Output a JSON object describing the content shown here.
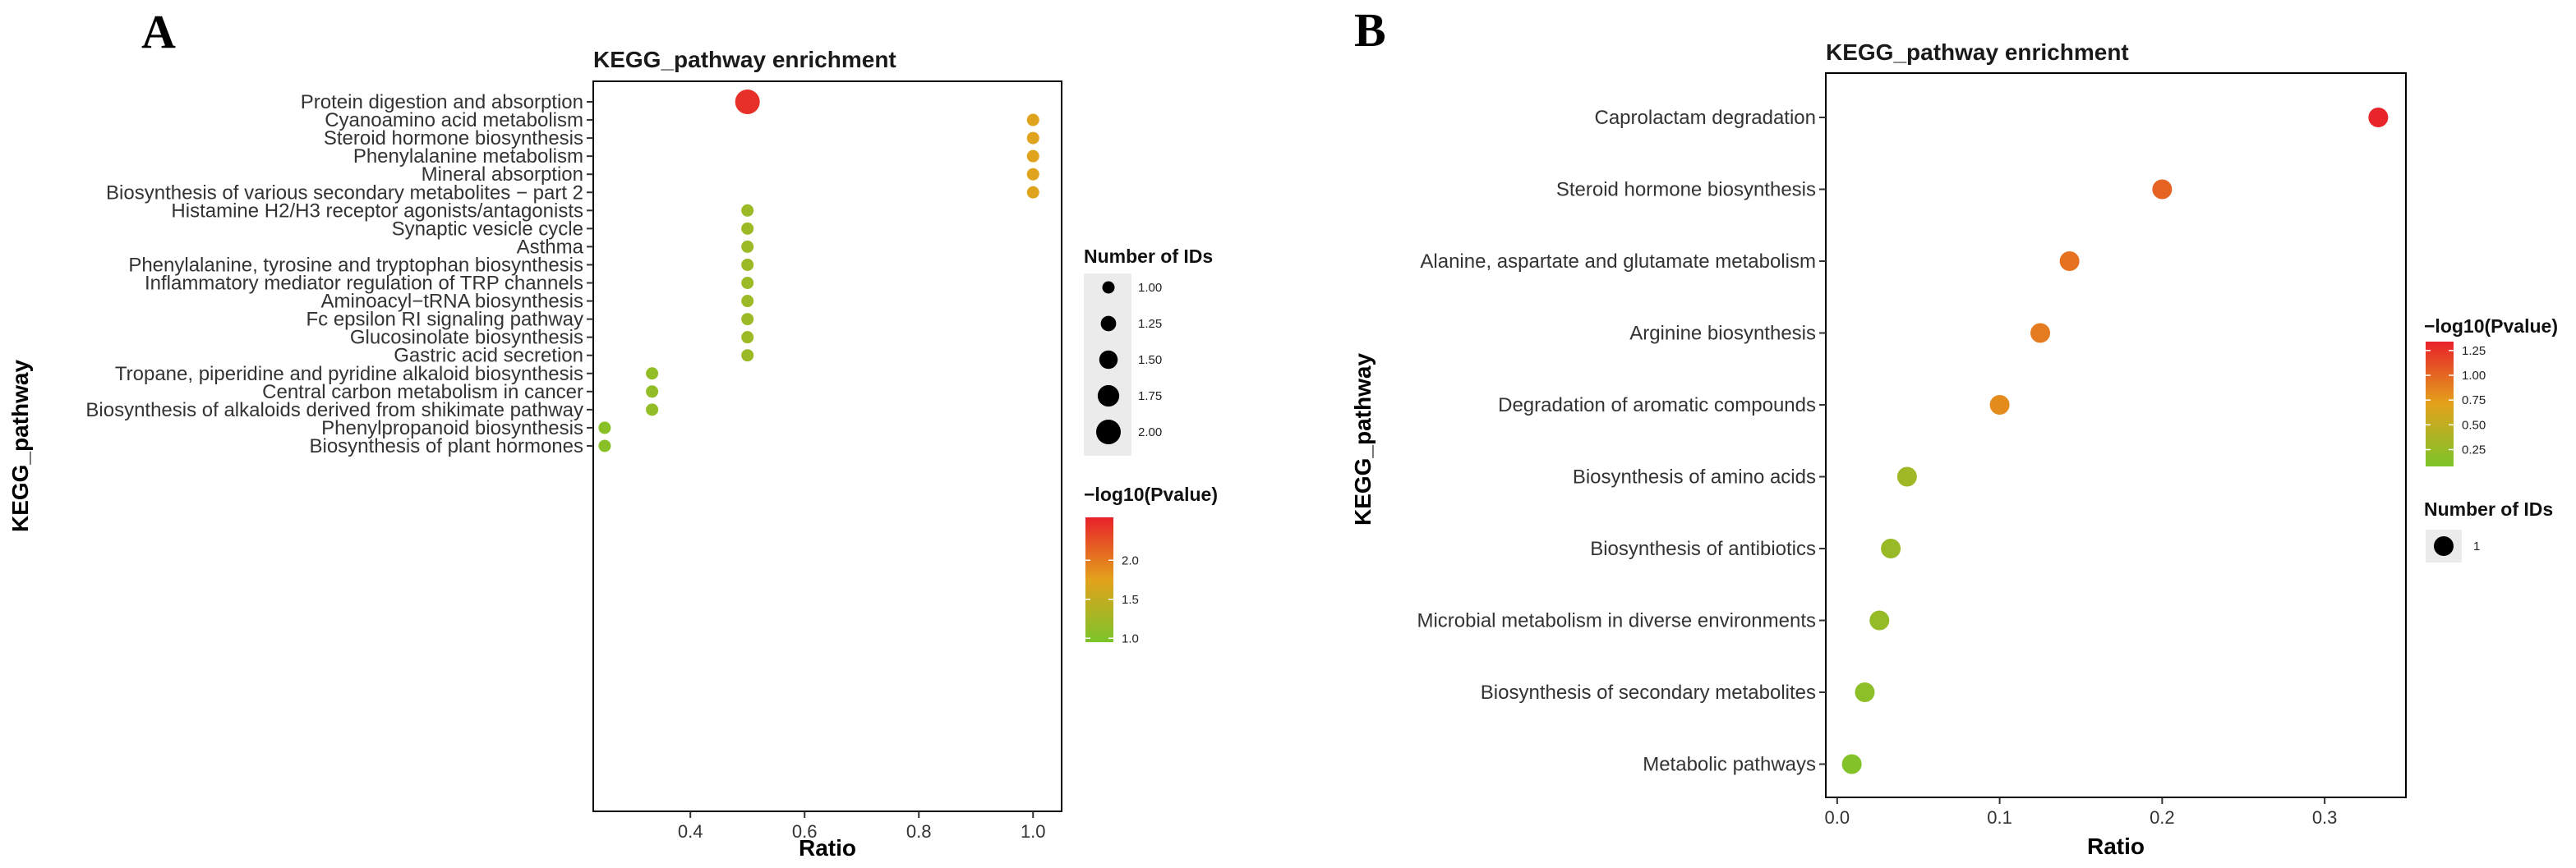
{
  "chart_data": [
    {
      "type": "scatter",
      "panel_label": "A",
      "title": "KEGG_pathway enrichment",
      "xlabel": "Ratio",
      "ylabel": "KEGG_pathway",
      "xlim": [
        0.23,
        1.05
      ],
      "xticks": [
        0.4,
        0.6,
        0.8,
        1.0
      ],
      "xtick_labels": [
        "0.4",
        "0.6",
        "0.8",
        "1.0"
      ],
      "grid": false,
      "categories": [
        "Protein digestion and absorption",
        "Cyanoamino acid metabolism",
        "Steroid hormone biosynthesis",
        "Phenylalanine metabolism",
        "Mineral absorption",
        "Biosynthesis of various secondary metabolites − part 2",
        "Histamine H2/H3 receptor agonists/antagonists",
        "Synaptic vesicle cycle",
        "Asthma",
        "Phenylalanine, tyrosine and tryptophan biosynthesis",
        "Inflammatory mediator regulation of TRP channels",
        "Aminoacyl−tRNA biosynthesis",
        "Fc epsilon RI signaling pathway",
        "Glucosinolate biosynthesis",
        "Gastric acid secretion",
        "Tropane, piperidine and pyridine alkaloid biosynthesis",
        "Central carbon metabolism in cancer",
        "Biosynthesis of alkaloids derived from shikimate pathway",
        "Phenylpropanoid biosynthesis",
        "Biosynthesis of plant hormones"
      ],
      "ratio": [
        0.5,
        1.0,
        1.0,
        1.0,
        1.0,
        1.0,
        0.5,
        0.5,
        0.5,
        0.5,
        0.5,
        0.5,
        0.5,
        0.5,
        0.5,
        0.333,
        0.333,
        0.333,
        0.25,
        0.25
      ],
      "neg_log10_p": [
        2.45,
        1.72,
        1.72,
        1.72,
        1.72,
        1.72,
        1.2,
        1.2,
        1.2,
        1.2,
        1.2,
        1.2,
        1.2,
        1.2,
        1.2,
        1.12,
        1.12,
        1.12,
        1.05,
        1.05
      ],
      "number_of_ids": [
        2,
        1,
        1,
        1,
        1,
        1,
        1,
        1,
        1,
        1,
        1,
        1,
        1,
        1,
        1,
        1,
        1,
        1,
        1,
        1
      ],
      "size_legend": {
        "title": "Number of IDs",
        "values": [
          1.0,
          1.25,
          1.5,
          1.75,
          2.0
        ],
        "labels": [
          "1.00",
          "1.25",
          "1.50",
          "1.75",
          "2.00"
        ]
      },
      "color_legend": {
        "title": "−log10(Pvalue)",
        "range": [
          0.95,
          2.55
        ],
        "ticks": [
          1.0,
          1.5,
          2.0
        ],
        "tick_labels": [
          "1.0",
          "1.5",
          "2.0"
        ],
        "low_color": "#7cc42a",
        "high_color": "#e8212a"
      }
    },
    {
      "type": "scatter",
      "panel_label": "B",
      "title": "KEGG_pathway enrichment",
      "xlabel": "Ratio",
      "ylabel": "KEGG_pathway",
      "xlim": [
        -0.007,
        0.35
      ],
      "xticks": [
        0.0,
        0.1,
        0.2,
        0.3
      ],
      "xtick_labels": [
        "0.0",
        "0.1",
        "0.2",
        "0.3"
      ],
      "grid": false,
      "categories": [
        "Caprolactam degradation",
        "Steroid hormone biosynthesis",
        "Alanine, aspartate and glutamate metabolism",
        "Arginine biosynthesis",
        "Degradation of aromatic compounds",
        "Biosynthesis of amino acids",
        "Biosynthesis of antibiotics",
        "Microbial metabolism in diverse environments",
        "Biosynthesis of secondary metabolites",
        "Metabolic pathways"
      ],
      "ratio": [
        0.333,
        0.2,
        0.143,
        0.125,
        0.1,
        0.043,
        0.033,
        0.026,
        0.017,
        0.009
      ],
      "neg_log10_p": [
        1.32,
        1.02,
        0.95,
        0.9,
        0.82,
        0.3,
        0.26,
        0.23,
        0.18,
        0.12
      ],
      "number_of_ids": [
        1,
        1,
        1,
        1,
        1,
        1,
        1,
        1,
        1,
        1
      ],
      "size_legend": {
        "title": "Number of IDs",
        "values": [
          1
        ],
        "labels": [
          "1"
        ]
      },
      "color_legend": {
        "title": "−log10(Pvalue)",
        "range": [
          0.08,
          1.34
        ],
        "ticks": [
          0.25,
          0.5,
          0.75,
          1.0,
          1.25
        ],
        "tick_labels": [
          "0.25",
          "0.50",
          "0.75",
          "1.00",
          "1.25"
        ],
        "low_color": "#7cc42a",
        "high_color": "#e8212a"
      }
    }
  ]
}
